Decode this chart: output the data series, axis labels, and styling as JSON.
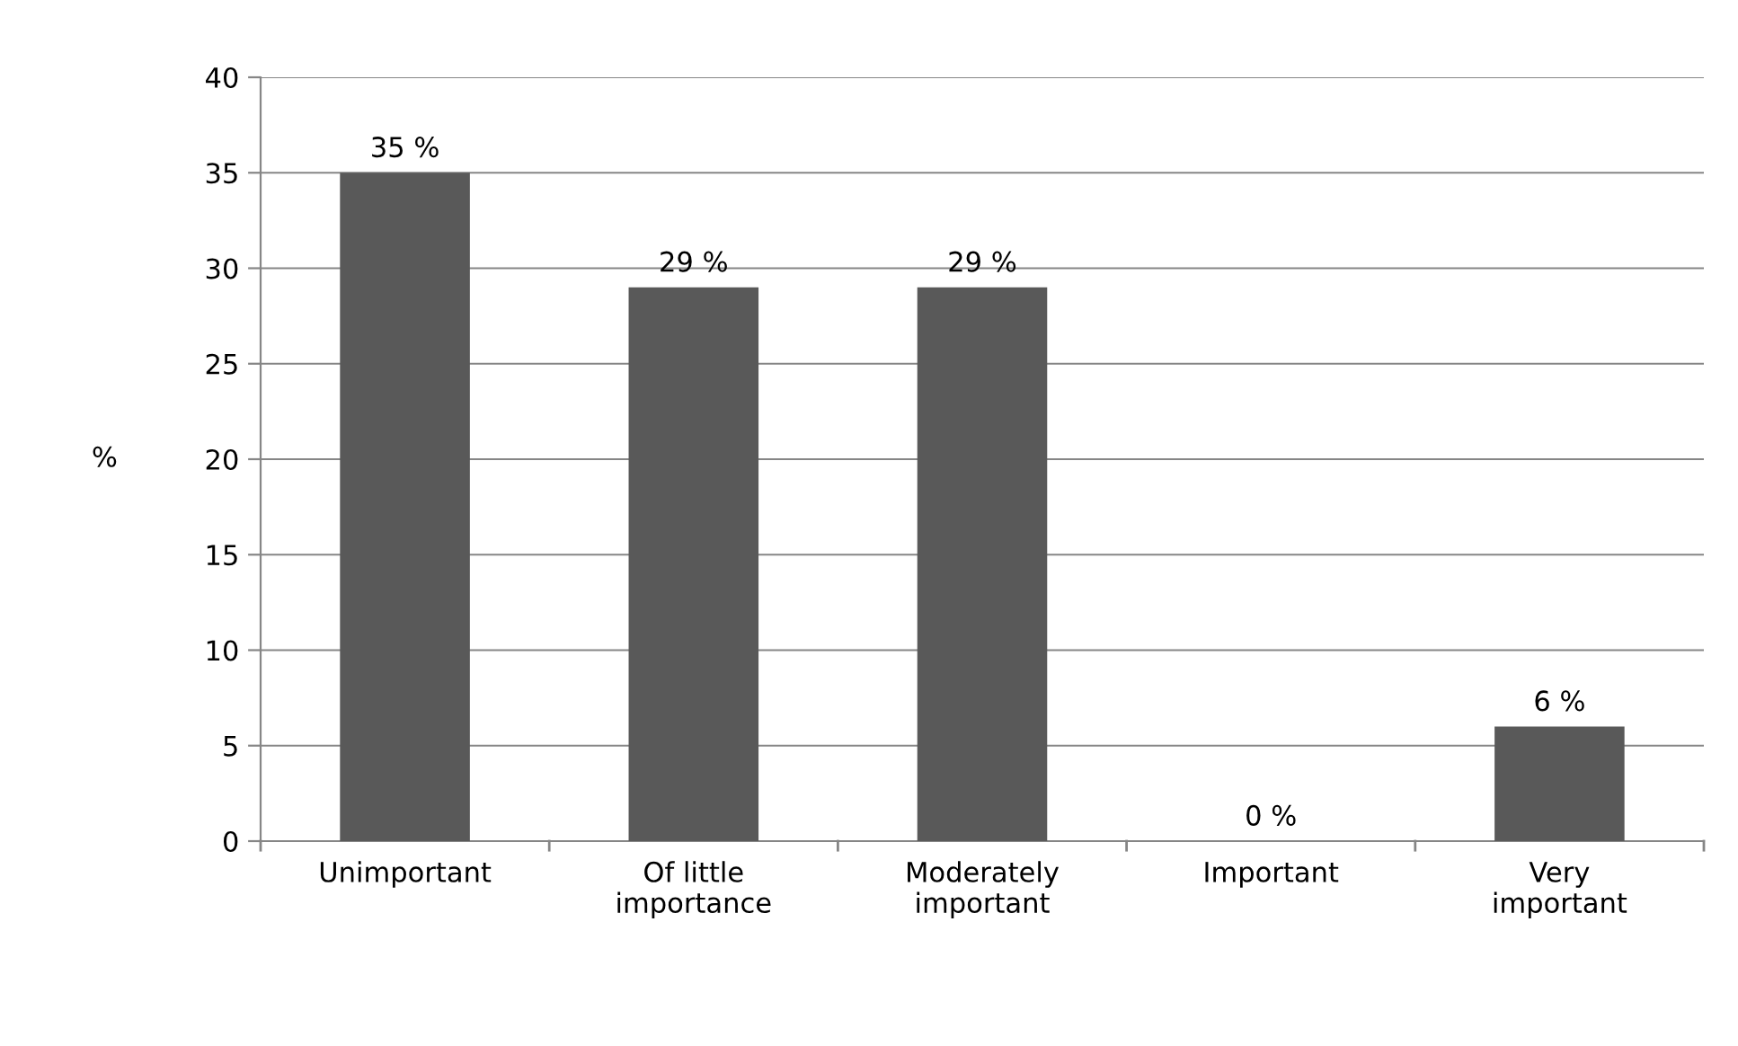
{
  "chart_data": {
    "type": "bar",
    "ylabel": "%",
    "categories": [
      "Unimportant",
      "Of little\nimportance",
      "Moderately\nimportant",
      "Important",
      "Very\nimportant"
    ],
    "values": [
      35,
      29,
      29,
      0,
      6
    ],
    "color": "#595959",
    "value_labels": [
      "35 %",
      "29 %",
      "29 %",
      "0 %",
      "6 %"
    ],
    "ylim": [
      0,
      40
    ],
    "yticks": [
      0,
      5,
      10,
      15,
      20,
      25,
      30,
      35,
      40
    ],
    "grid": "y"
  }
}
